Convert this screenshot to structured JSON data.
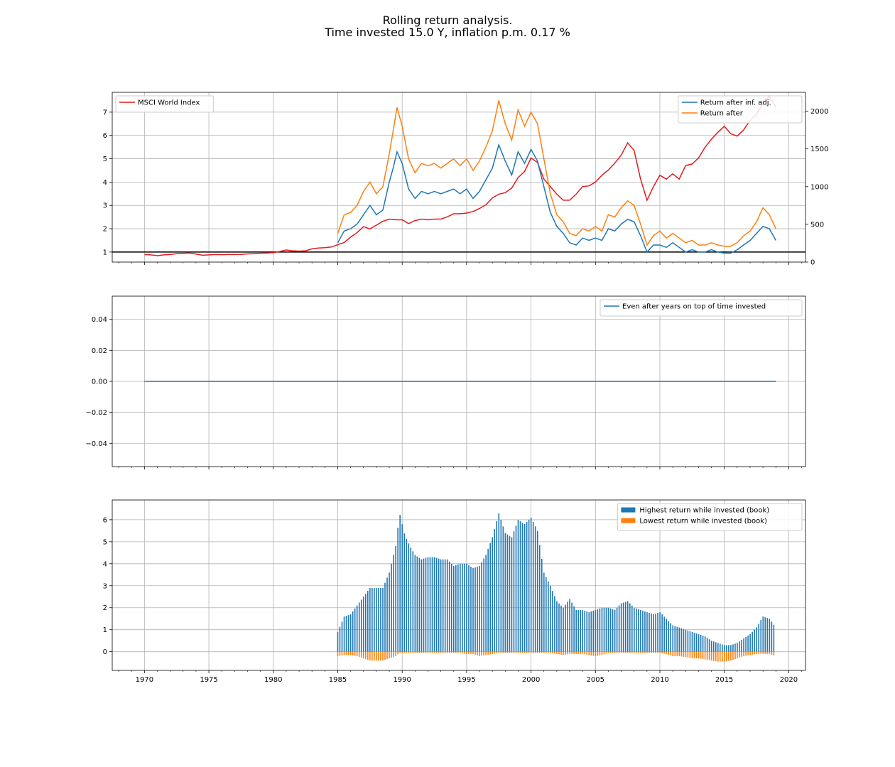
{
  "title_line1": "Rolling return analysis.",
  "title_line2": "Time invested 15.0 Y, inflation p.m. 0.17 %",
  "colors": {
    "blue": "#1f77b4",
    "orange": "#ff7f0e",
    "red": "#e41a1c",
    "grid": "#b0b0b0",
    "axis": "#000000"
  },
  "chart_data": [
    {
      "type": "line",
      "title": "",
      "xlabel": "",
      "ylabel": "",
      "xlim": [
        1967.5,
        2021.3
      ],
      "ylim": [
        0.57,
        7.85
      ],
      "ylim_right": [
        0,
        2250
      ],
      "grid": true,
      "legend_left": "top-left",
      "legend_right": "top-right",
      "x_ticks": [
        1970,
        1975,
        1980,
        1985,
        1990,
        1995,
        2000,
        2005,
        2010,
        2015,
        2020
      ],
      "y_ticks": [
        1,
        2,
        3,
        4,
        5,
        6,
        7
      ],
      "y_ticks_right": [
        0,
        500,
        1000,
        1500,
        2000
      ],
      "hline": 1,
      "series": [
        {
          "name": "MSCI World Index",
          "axis": "right",
          "color": "#e41a1c",
          "x": [
            1970,
            1970.5,
            1971,
            1971.5,
            1972,
            1972.5,
            1973,
            1973.5,
            1974,
            1974.5,
            1975,
            1975.5,
            1976,
            1976.5,
            1977,
            1977.5,
            1978,
            1978.5,
            1979,
            1979.5,
            1980,
            1980.5,
            1981,
            1981.5,
            1982,
            1982.5,
            1983,
            1983.5,
            1984,
            1984.5,
            1985,
            1985.5,
            1986,
            1986.5,
            1987,
            1987.5,
            1988,
            1988.5,
            1989,
            1989.5,
            1990,
            1990.5,
            1991,
            1991.5,
            1992,
            1992.5,
            1993,
            1993.5,
            1994,
            1994.5,
            1995,
            1995.5,
            1996,
            1996.5,
            1997,
            1997.5,
            1998,
            1998.5,
            1999,
            1999.5,
            2000,
            2000.5,
            2001,
            2001.5,
            2002,
            2002.5,
            2003,
            2003.5,
            2004,
            2004.5,
            2005,
            2005.5,
            2006,
            2006.5,
            2007,
            2007.5,
            2008,
            2008.5,
            2009,
            2009.5,
            2010,
            2010.5,
            2011,
            2011.5,
            2012,
            2012.5,
            2013,
            2013.5,
            2014,
            2014.5,
            2015,
            2015.5,
            2016,
            2016.5,
            2017,
            2017.5,
            2018,
            2018.5,
            2019
          ],
          "values": [
            100,
            95,
            85,
            95,
            100,
            110,
            115,
            120,
            105,
            90,
            95,
            100,
            98,
            100,
            100,
            102,
            108,
            110,
            118,
            120,
            125,
            140,
            160,
            150,
            145,
            150,
            175,
            185,
            190,
            200,
            230,
            260,
            330,
            390,
            470,
            440,
            490,
            540,
            570,
            560,
            560,
            510,
            550,
            570,
            560,
            570,
            570,
            600,
            640,
            640,
            650,
            670,
            710,
            760,
            850,
            900,
            920,
            980,
            1120,
            1200,
            1380,
            1320,
            1100,
            1000,
            900,
            820,
            820,
            900,
            1000,
            1010,
            1060,
            1150,
            1220,
            1310,
            1420,
            1580,
            1480,
            1100,
            820,
            1000,
            1150,
            1100,
            1170,
            1100,
            1280,
            1300,
            1380,
            1520,
            1630,
            1720,
            1800,
            1700,
            1670,
            1750,
            1880,
            1960,
            2100,
            2200,
            2050
          ]
        },
        {
          "name": "Return after inf. adj.",
          "axis": "left",
          "color": "#1f77b4",
          "x": [
            1985,
            1985.5,
            1986,
            1986.5,
            1987,
            1987.5,
            1988,
            1988.5,
            1989,
            1989.3,
            1989.6,
            1990,
            1990.5,
            1991,
            1991.5,
            1992,
            1992.5,
            1993,
            1993.5,
            1994,
            1994.5,
            1995,
            1995.5,
            1996,
            1996.5,
            1997,
            1997.5,
            1998,
            1998.5,
            1999,
            1999.5,
            2000,
            2000.5,
            2001,
            2001.5,
            2002,
            2002.5,
            2003,
            2003.5,
            2004,
            2004.5,
            2005,
            2005.5,
            2006,
            2006.5,
            2007,
            2007.5,
            2008,
            2008.5,
            2009,
            2009.5,
            2010,
            2010.5,
            2011,
            2011.5,
            2012,
            2012.5,
            2013,
            2013.5,
            2014,
            2014.5,
            2015,
            2015.5,
            2016,
            2016.5,
            2017,
            2017.5,
            2018,
            2018.5,
            2019
          ],
          "values": [
            1.4,
            1.9,
            2.0,
            2.2,
            2.6,
            3.0,
            2.6,
            2.8,
            4.0,
            4.6,
            5.3,
            4.8,
            3.7,
            3.3,
            3.6,
            3.5,
            3.6,
            3.5,
            3.6,
            3.7,
            3.5,
            3.7,
            3.3,
            3.6,
            4.1,
            4.6,
            5.6,
            4.9,
            4.3,
            5.3,
            4.8,
            5.4,
            4.9,
            3.8,
            2.7,
            2.1,
            1.8,
            1.4,
            1.3,
            1.6,
            1.5,
            1.6,
            1.5,
            2.0,
            1.9,
            2.2,
            2.4,
            2.3,
            1.7,
            1.0,
            1.3,
            1.3,
            1.2,
            1.4,
            1.2,
            1.0,
            1.1,
            1.0,
            1.0,
            1.1,
            1.0,
            0.95,
            0.95,
            1.1,
            1.3,
            1.5,
            1.8,
            2.1,
            2.0,
            1.5
          ]
        },
        {
          "name": "Return after",
          "axis": "left",
          "color": "#ff7f0e",
          "x": [
            1985,
            1985.5,
            1986,
            1986.5,
            1987,
            1987.5,
            1988,
            1988.5,
            1989,
            1989.3,
            1989.6,
            1990,
            1990.5,
            1991,
            1991.5,
            1992,
            1992.5,
            1993,
            1993.5,
            1994,
            1994.5,
            1995,
            1995.5,
            1996,
            1996.5,
            1997,
            1997.5,
            1998,
            1998.5,
            1999,
            1999.5,
            2000,
            2000.5,
            2001,
            2001.5,
            2002,
            2002.5,
            2003,
            2003.5,
            2004,
            2004.5,
            2005,
            2005.5,
            2006,
            2006.5,
            2007,
            2007.5,
            2008,
            2008.5,
            2009,
            2009.5,
            2010,
            2010.5,
            2011,
            2011.5,
            2012,
            2012.5,
            2013,
            2013.5,
            2014,
            2014.5,
            2015,
            2015.5,
            2016,
            2016.5,
            2017,
            2017.5,
            2018,
            2018.5,
            2019
          ],
          "values": [
            1.8,
            2.6,
            2.7,
            3.0,
            3.6,
            4.0,
            3.5,
            3.8,
            5.2,
            6.2,
            7.2,
            6.4,
            5.0,
            4.4,
            4.8,
            4.7,
            4.8,
            4.6,
            4.8,
            5.0,
            4.7,
            5.0,
            4.5,
            4.9,
            5.5,
            6.2,
            7.5,
            6.5,
            5.8,
            7.1,
            6.4,
            7.0,
            6.5,
            5.0,
            3.5,
            2.6,
            2.3,
            1.8,
            1.7,
            2.0,
            1.9,
            2.1,
            1.9,
            2.6,
            2.5,
            2.9,
            3.2,
            3.0,
            2.2,
            1.3,
            1.7,
            1.9,
            1.6,
            1.8,
            1.6,
            1.4,
            1.5,
            1.3,
            1.3,
            1.4,
            1.3,
            1.25,
            1.25,
            1.4,
            1.7,
            1.9,
            2.3,
            2.9,
            2.6,
            2.0
          ]
        }
      ]
    },
    {
      "type": "line",
      "title": "",
      "xlabel": "",
      "ylabel": "",
      "xlim": [
        1967.5,
        2021.3
      ],
      "ylim": [
        -0.055,
        0.055
      ],
      "grid": true,
      "legend": "top-right",
      "y_ticks": [
        -0.04,
        -0.02,
        0.0,
        0.02,
        0.04
      ],
      "y_tick_labels": [
        "−0.04",
        "−0.02",
        "0.00",
        "0.02",
        "0.04"
      ],
      "series": [
        {
          "name": "Even after years on top of time invested",
          "color": "#1f77b4",
          "x": [
            1970,
            2019
          ],
          "values": [
            0,
            0
          ]
        }
      ]
    },
    {
      "type": "bar",
      "title": "",
      "xlabel": "",
      "ylabel": "",
      "xlim": [
        1967.5,
        2021.3
      ],
      "ylim": [
        -0.85,
        6.9
      ],
      "grid": true,
      "legend": "top-right",
      "x_ticks": [
        1970,
        1975,
        1980,
        1985,
        1990,
        1995,
        2000,
        2005,
        2010,
        2015,
        2020
      ],
      "y_ticks": [
        0,
        1,
        2,
        3,
        4,
        5,
        6
      ],
      "bar_step_years": 0.1667,
      "series": [
        {
          "name": "Highest return while invested (book)",
          "color": "#1f77b4",
          "x": [
            1985,
            1985.5,
            1986,
            1986.5,
            1987,
            1987.5,
            1988,
            1988.5,
            1989,
            1989.5,
            1989.8,
            1990.2,
            1990.6,
            1991,
            1991.5,
            1992,
            1992.5,
            1993,
            1993.5,
            1994,
            1994.5,
            1995,
            1995.5,
            1996,
            1996.5,
            1997,
            1997.5,
            1998,
            1998.5,
            1999,
            1999.5,
            2000,
            2000.5,
            2001,
            2001.5,
            2002,
            2002.5,
            2003,
            2003.5,
            2004,
            2004.5,
            2005,
            2005.5,
            2006,
            2006.5,
            2007,
            2007.5,
            2008,
            2008.5,
            2009,
            2009.5,
            2010,
            2010.5,
            2011,
            2011.5,
            2012,
            2012.5,
            2013,
            2013.5,
            2014,
            2014.5,
            2015,
            2015.5,
            2016,
            2016.5,
            2017,
            2017.5,
            2018,
            2018.5,
            2019
          ],
          "values": [
            0.9,
            1.6,
            1.7,
            2.1,
            2.5,
            2.9,
            2.9,
            2.9,
            3.6,
            4.8,
            6.3,
            5.3,
            4.8,
            4.4,
            4.2,
            4.3,
            4.3,
            4.2,
            4.2,
            3.9,
            4.0,
            4.0,
            3.8,
            3.9,
            4.4,
            5.2,
            6.3,
            5.4,
            5.2,
            6.0,
            5.8,
            6.1,
            5.5,
            3.6,
            3.0,
            2.3,
            2.0,
            2.4,
            1.9,
            1.9,
            1.8,
            1.9,
            2.0,
            2.0,
            1.9,
            2.2,
            2.3,
            2.0,
            1.9,
            1.8,
            1.7,
            1.8,
            1.5,
            1.2,
            1.1,
            1.0,
            0.9,
            0.8,
            0.7,
            0.5,
            0.4,
            0.3,
            0.3,
            0.4,
            0.6,
            0.8,
            1.1,
            1.6,
            1.5,
            1.1
          ]
        },
        {
          "name": "Lowest return while invested (book)",
          "color": "#ff7f0e",
          "x": [
            1985,
            1985.5,
            1986,
            1986.5,
            1987,
            1987.5,
            1988,
            1988.5,
            1989,
            1989.5,
            1989.8,
            1990.2,
            1990.6,
            1991,
            1991.5,
            1992,
            1992.5,
            1993,
            1993.5,
            1994,
            1994.5,
            1995,
            1995.5,
            1996,
            1996.5,
            1997,
            1997.5,
            1998,
            1998.5,
            1999,
            1999.5,
            2000,
            2000.5,
            2001,
            2001.5,
            2002,
            2002.5,
            2003,
            2003.5,
            2004,
            2004.5,
            2005,
            2005.5,
            2006,
            2006.5,
            2007,
            2007.5,
            2008,
            2008.5,
            2009,
            2009.5,
            2010,
            2010.5,
            2011,
            2011.5,
            2012,
            2012.5,
            2013,
            2013.5,
            2014,
            2014.5,
            2015,
            2015.5,
            2016,
            2016.5,
            2017,
            2017.5,
            2018,
            2018.5,
            2019
          ],
          "values": [
            -0.2,
            -0.15,
            -0.15,
            -0.2,
            -0.3,
            -0.4,
            -0.4,
            -0.4,
            -0.3,
            -0.2,
            -0.05,
            -0.05,
            -0.05,
            -0.05,
            -0.05,
            -0.05,
            -0.05,
            -0.05,
            -0.05,
            -0.05,
            -0.05,
            -0.1,
            -0.1,
            -0.2,
            -0.15,
            -0.1,
            -0.05,
            -0.05,
            -0.05,
            -0.05,
            -0.05,
            -0.05,
            -0.05,
            -0.05,
            -0.05,
            -0.1,
            -0.15,
            -0.1,
            -0.1,
            -0.1,
            -0.15,
            -0.2,
            -0.15,
            -0.05,
            -0.05,
            -0.05,
            -0.05,
            -0.05,
            -0.05,
            -0.05,
            -0.05,
            -0.05,
            -0.1,
            -0.2,
            -0.2,
            -0.25,
            -0.3,
            -0.3,
            -0.35,
            -0.4,
            -0.45,
            -0.45,
            -0.4,
            -0.3,
            -0.2,
            -0.15,
            -0.1,
            -0.1,
            -0.1,
            -0.2
          ]
        }
      ]
    }
  ]
}
